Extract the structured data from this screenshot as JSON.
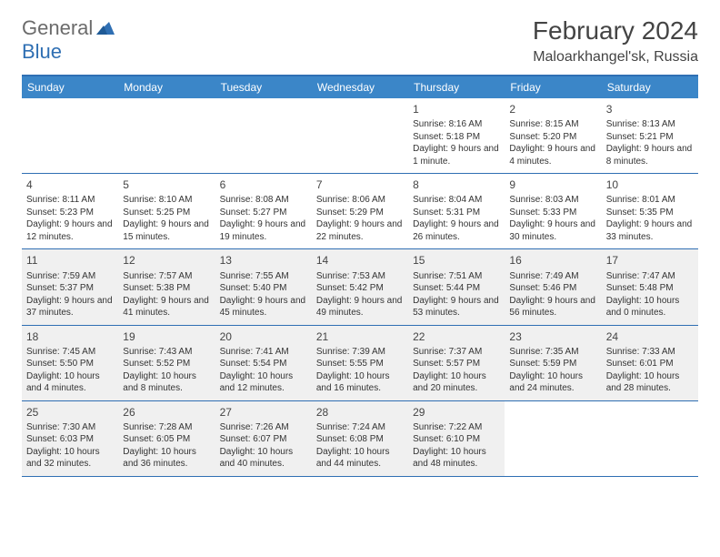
{
  "logo": {
    "text1": "General",
    "text2": "Blue"
  },
  "title": "February 2024",
  "location": "Maloarkhangel'sk, Russia",
  "colors": {
    "header_bg": "#3b86c8",
    "header_border": "#2f6fb3",
    "shaded_bg": "#f0f0f0",
    "text": "#333333",
    "logo_gray": "#6b6b6b",
    "logo_blue": "#2f6fb3"
  },
  "day_headers": [
    "Sunday",
    "Monday",
    "Tuesday",
    "Wednesday",
    "Thursday",
    "Friday",
    "Saturday"
  ],
  "weeks": [
    {
      "shaded": false,
      "days": [
        {
          "num": "",
          "sunrise": "",
          "sunset": "",
          "daylight": ""
        },
        {
          "num": "",
          "sunrise": "",
          "sunset": "",
          "daylight": ""
        },
        {
          "num": "",
          "sunrise": "",
          "sunset": "",
          "daylight": ""
        },
        {
          "num": "",
          "sunrise": "",
          "sunset": "",
          "daylight": ""
        },
        {
          "num": "1",
          "sunrise": "Sunrise: 8:16 AM",
          "sunset": "Sunset: 5:18 PM",
          "daylight": "Daylight: 9 hours and 1 minute."
        },
        {
          "num": "2",
          "sunrise": "Sunrise: 8:15 AM",
          "sunset": "Sunset: 5:20 PM",
          "daylight": "Daylight: 9 hours and 4 minutes."
        },
        {
          "num": "3",
          "sunrise": "Sunrise: 8:13 AM",
          "sunset": "Sunset: 5:21 PM",
          "daylight": "Daylight: 9 hours and 8 minutes."
        }
      ]
    },
    {
      "shaded": false,
      "days": [
        {
          "num": "4",
          "sunrise": "Sunrise: 8:11 AM",
          "sunset": "Sunset: 5:23 PM",
          "daylight": "Daylight: 9 hours and 12 minutes."
        },
        {
          "num": "5",
          "sunrise": "Sunrise: 8:10 AM",
          "sunset": "Sunset: 5:25 PM",
          "daylight": "Daylight: 9 hours and 15 minutes."
        },
        {
          "num": "6",
          "sunrise": "Sunrise: 8:08 AM",
          "sunset": "Sunset: 5:27 PM",
          "daylight": "Daylight: 9 hours and 19 minutes."
        },
        {
          "num": "7",
          "sunrise": "Sunrise: 8:06 AM",
          "sunset": "Sunset: 5:29 PM",
          "daylight": "Daylight: 9 hours and 22 minutes."
        },
        {
          "num": "8",
          "sunrise": "Sunrise: 8:04 AM",
          "sunset": "Sunset: 5:31 PM",
          "daylight": "Daylight: 9 hours and 26 minutes."
        },
        {
          "num": "9",
          "sunrise": "Sunrise: 8:03 AM",
          "sunset": "Sunset: 5:33 PM",
          "daylight": "Daylight: 9 hours and 30 minutes."
        },
        {
          "num": "10",
          "sunrise": "Sunrise: 8:01 AM",
          "sunset": "Sunset: 5:35 PM",
          "daylight": "Daylight: 9 hours and 33 minutes."
        }
      ]
    },
    {
      "shaded": true,
      "days": [
        {
          "num": "11",
          "sunrise": "Sunrise: 7:59 AM",
          "sunset": "Sunset: 5:37 PM",
          "daylight": "Daylight: 9 hours and 37 minutes."
        },
        {
          "num": "12",
          "sunrise": "Sunrise: 7:57 AM",
          "sunset": "Sunset: 5:38 PM",
          "daylight": "Daylight: 9 hours and 41 minutes."
        },
        {
          "num": "13",
          "sunrise": "Sunrise: 7:55 AM",
          "sunset": "Sunset: 5:40 PM",
          "daylight": "Daylight: 9 hours and 45 minutes."
        },
        {
          "num": "14",
          "sunrise": "Sunrise: 7:53 AM",
          "sunset": "Sunset: 5:42 PM",
          "daylight": "Daylight: 9 hours and 49 minutes."
        },
        {
          "num": "15",
          "sunrise": "Sunrise: 7:51 AM",
          "sunset": "Sunset: 5:44 PM",
          "daylight": "Daylight: 9 hours and 53 minutes."
        },
        {
          "num": "16",
          "sunrise": "Sunrise: 7:49 AM",
          "sunset": "Sunset: 5:46 PM",
          "daylight": "Daylight: 9 hours and 56 minutes."
        },
        {
          "num": "17",
          "sunrise": "Sunrise: 7:47 AM",
          "sunset": "Sunset: 5:48 PM",
          "daylight": "Daylight: 10 hours and 0 minutes."
        }
      ]
    },
    {
      "shaded": true,
      "days": [
        {
          "num": "18",
          "sunrise": "Sunrise: 7:45 AM",
          "sunset": "Sunset: 5:50 PM",
          "daylight": "Daylight: 10 hours and 4 minutes."
        },
        {
          "num": "19",
          "sunrise": "Sunrise: 7:43 AM",
          "sunset": "Sunset: 5:52 PM",
          "daylight": "Daylight: 10 hours and 8 minutes."
        },
        {
          "num": "20",
          "sunrise": "Sunrise: 7:41 AM",
          "sunset": "Sunset: 5:54 PM",
          "daylight": "Daylight: 10 hours and 12 minutes."
        },
        {
          "num": "21",
          "sunrise": "Sunrise: 7:39 AM",
          "sunset": "Sunset: 5:55 PM",
          "daylight": "Daylight: 10 hours and 16 minutes."
        },
        {
          "num": "22",
          "sunrise": "Sunrise: 7:37 AM",
          "sunset": "Sunset: 5:57 PM",
          "daylight": "Daylight: 10 hours and 20 minutes."
        },
        {
          "num": "23",
          "sunrise": "Sunrise: 7:35 AM",
          "sunset": "Sunset: 5:59 PM",
          "daylight": "Daylight: 10 hours and 24 minutes."
        },
        {
          "num": "24",
          "sunrise": "Sunrise: 7:33 AM",
          "sunset": "Sunset: 6:01 PM",
          "daylight": "Daylight: 10 hours and 28 minutes."
        }
      ]
    },
    {
      "shaded": true,
      "days": [
        {
          "num": "25",
          "sunrise": "Sunrise: 7:30 AM",
          "sunset": "Sunset: 6:03 PM",
          "daylight": "Daylight: 10 hours and 32 minutes."
        },
        {
          "num": "26",
          "sunrise": "Sunrise: 7:28 AM",
          "sunset": "Sunset: 6:05 PM",
          "daylight": "Daylight: 10 hours and 36 minutes."
        },
        {
          "num": "27",
          "sunrise": "Sunrise: 7:26 AM",
          "sunset": "Sunset: 6:07 PM",
          "daylight": "Daylight: 10 hours and 40 minutes."
        },
        {
          "num": "28",
          "sunrise": "Sunrise: 7:24 AM",
          "sunset": "Sunset: 6:08 PM",
          "daylight": "Daylight: 10 hours and 44 minutes."
        },
        {
          "num": "29",
          "sunrise": "Sunrise: 7:22 AM",
          "sunset": "Sunset: 6:10 PM",
          "daylight": "Daylight: 10 hours and 48 minutes."
        },
        {
          "num": "",
          "sunrise": "",
          "sunset": "",
          "daylight": ""
        },
        {
          "num": "",
          "sunrise": "",
          "sunset": "",
          "daylight": ""
        }
      ]
    }
  ]
}
